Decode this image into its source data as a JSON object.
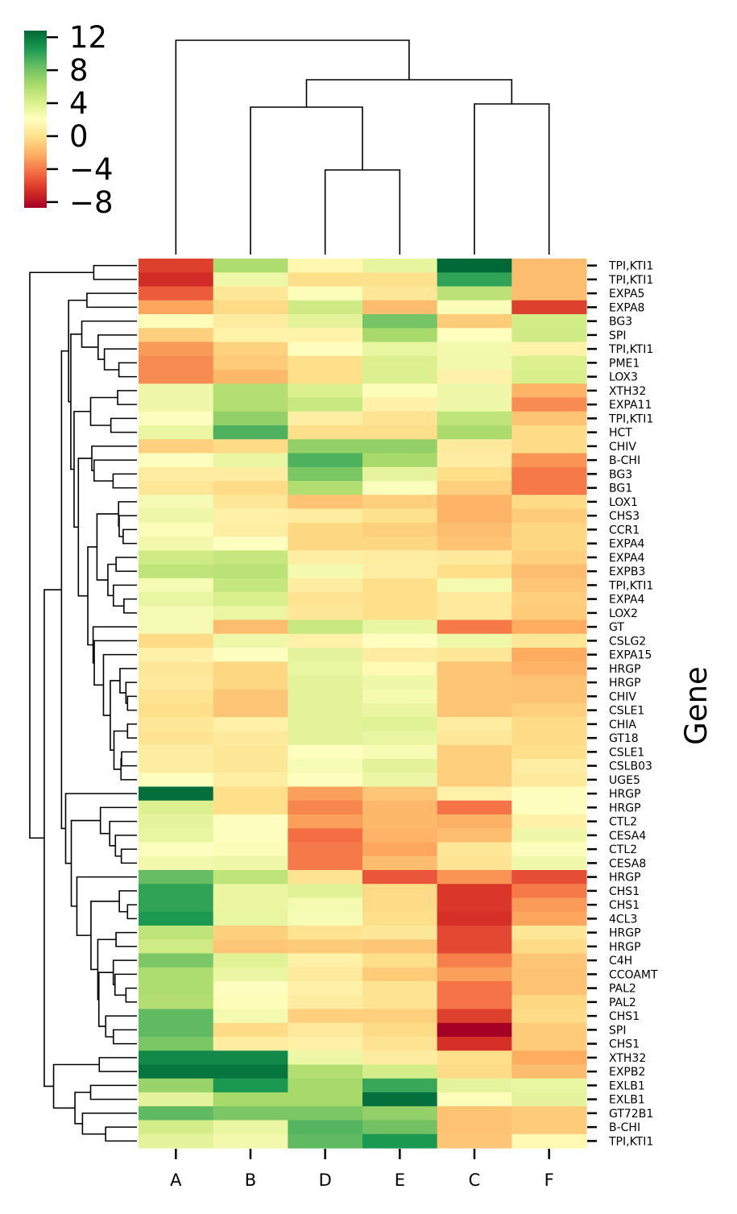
{
  "chart_data": {
    "type": "heatmap",
    "ylabel": "Gene",
    "colormap": "RdYlGn",
    "colorbar": {
      "range": [
        -8.7,
        12.8
      ],
      "ticks": [
        12,
        8,
        4,
        0,
        -4,
        -8
      ],
      "tick_labels": [
        "12",
        "8",
        "4",
        "0",
        "−4",
        "−8"
      ],
      "placement": "top-left"
    },
    "dendrogram": {
      "rows": true,
      "columns": true
    },
    "columns": [
      "A",
      "B",
      "D",
      "E",
      "C",
      "F"
    ],
    "rows": [
      "TPI,KTI1",
      "TPI,KTI1",
      "EXPA5",
      "EXPA8",
      "BG3",
      "SPI",
      "TPI,KTI1",
      "PME1",
      "LOX3",
      "XTH32",
      "EXPA11",
      "TPI,KTI1",
      "HCT",
      "CHIV",
      "B-CHI",
      "BG3",
      "BG1",
      "LOX1",
      "CHS3",
      "CCR1",
      "EXPA4",
      "EXPA4",
      "EXPB3",
      "TPI,KTI1",
      "EXPA4",
      "LOX2",
      "GT",
      "CSLG2",
      "EXPA15",
      "HRGP",
      "HRGP",
      "CHIV",
      "CSLE1",
      "CHIA",
      "GT18",
      "CSLE1",
      "CSLB03",
      "UGE5",
      "HRGP",
      "HRGP",
      "CTL2",
      "CESA4",
      "CTL2",
      "CESA8",
      "HRGP",
      "CHS1",
      "CHS1",
      "4CL3",
      "HRGP",
      "HRGP",
      "C4H",
      "CCOAMT",
      "PAL2",
      "PAL2",
      "CHS1",
      "SPI",
      "CHS1",
      "XTH32",
      "EXPB2",
      "EXLB1",
      "EXLB1",
      "GT72B1",
      "B-CHI",
      "TPI,KTI1"
    ],
    "values": [
      [
        -6.0,
        6.0,
        1.5,
        3.4,
        12.8,
        -1.6
      ],
      [
        -6.8,
        3.0,
        -0.1,
        0.0,
        10.0,
        -1.6
      ],
      [
        -5.0,
        0.4,
        2.3,
        0.4,
        5.5,
        -1.6
      ],
      [
        -2.5,
        -0.3,
        4.6,
        -1.6,
        2.3,
        -6.0
      ],
      [
        1.8,
        0.8,
        3.6,
        8.0,
        -1.0,
        4.5
      ],
      [
        -0.8,
        1.2,
        1.2,
        6.3,
        2.1,
        4.6
      ],
      [
        -2.9,
        -0.7,
        2.0,
        3.3,
        2.8,
        1.2
      ],
      [
        -3.4,
        -1.0,
        -0.1,
        4.0,
        2.8,
        4.0
      ],
      [
        -3.4,
        -1.8,
        -0.1,
        4.0,
        1.1,
        4.2
      ],
      [
        3.0,
        5.8,
        4.0,
        2.3,
        3.0,
        -2.0
      ],
      [
        3.0,
        5.8,
        4.9,
        1.1,
        3.0,
        -3.4
      ],
      [
        2.1,
        7.0,
        0.9,
        0.2,
        5.3,
        -1.3
      ],
      [
        3.2,
        9.2,
        -0.1,
        -0.1,
        6.2,
        -0.3
      ],
      [
        -0.8,
        -0.3,
        7.0,
        7.0,
        0.6,
        -0.3
      ],
      [
        2.1,
        3.2,
        9.2,
        6.3,
        0.8,
        -3.1
      ],
      [
        0.8,
        0.8,
        7.8,
        3.5,
        -0.1,
        -4.0
      ],
      [
        0.4,
        -0.3,
        5.9,
        2.2,
        -0.8,
        -4.0
      ],
      [
        2.6,
        0.4,
        -1.4,
        -0.8,
        -2.0,
        -0.3
      ],
      [
        3.0,
        1.1,
        0.8,
        0.0,
        -2.0,
        -1.0
      ],
      [
        2.3,
        0.9,
        -0.5,
        -0.8,
        -1.6,
        -0.5
      ],
      [
        2.8,
        2.1,
        -0.5,
        -0.5,
        -1.4,
        -0.5
      ],
      [
        4.6,
        5.0,
        0.9,
        0.8,
        0.6,
        -0.8
      ],
      [
        5.3,
        5.5,
        2.7,
        0.9,
        -0.1,
        -1.6
      ],
      [
        2.6,
        5.0,
        0.8,
        -0.1,
        2.7,
        -1.2
      ],
      [
        3.3,
        4.2,
        0.2,
        -0.1,
        0.6,
        -0.8
      ],
      [
        2.6,
        3.2,
        0.4,
        -0.1,
        0.6,
        -1.0
      ],
      [
        2.6,
        -1.6,
        4.9,
        3.3,
        -4.0,
        -2.3
      ],
      [
        -0.3,
        3.0,
        1.1,
        2.0,
        3.0,
        0.4
      ],
      [
        1.1,
        2.1,
        3.5,
        0.8,
        0.4,
        -2.3
      ],
      [
        0.4,
        -0.5,
        3.3,
        1.6,
        -1.2,
        -2.0
      ],
      [
        0.6,
        -0.5,
        3.6,
        3.0,
        -1.2,
        -1.4
      ],
      [
        0.2,
        -1.2,
        3.6,
        2.7,
        -1.2,
        -1.4
      ],
      [
        -0.1,
        -1.2,
        3.6,
        3.2,
        -1.2,
        -0.8
      ],
      [
        0.4,
        1.1,
        3.6,
        3.8,
        0.8,
        -0.3
      ],
      [
        0.2,
        0.6,
        3.6,
        3.3,
        0.4,
        -0.3
      ],
      [
        0.8,
        0.4,
        2.1,
        2.5,
        -0.8,
        -0.1
      ],
      [
        0.8,
        0.4,
        2.5,
        3.6,
        -0.8,
        0.9
      ],
      [
        2.1,
        0.9,
        2.1,
        3.1,
        -0.8,
        0.6
      ],
      [
        12.5,
        -0.1,
        -2.7,
        -1.2,
        1.1,
        2.1
      ],
      [
        4.0,
        -0.1,
        -3.6,
        -1.8,
        -4.2,
        2.1
      ],
      [
        3.5,
        2.1,
        -2.7,
        -1.8,
        -2.1,
        1.1
      ],
      [
        3.3,
        2.1,
        -4.4,
        -2.0,
        -1.6,
        3.0
      ],
      [
        2.1,
        2.3,
        -4.0,
        -2.5,
        0.4,
        2.2
      ],
      [
        2.8,
        3.0,
        -4.0,
        -1.6,
        0.2,
        3.0
      ],
      [
        8.5,
        5.3,
        0.2,
        -5.2,
        -3.1,
        -5.5
      ],
      [
        10.0,
        3.2,
        3.8,
        -0.3,
        -6.3,
        -4.0
      ],
      [
        10.0,
        3.2,
        2.7,
        -0.3,
        -6.3,
        -2.9
      ],
      [
        10.6,
        3.3,
        2.5,
        -0.1,
        -6.6,
        -2.5
      ],
      [
        5.3,
        -0.8,
        0.2,
        0.4,
        -5.7,
        0.4
      ],
      [
        4.6,
        -1.2,
        -1.0,
        -1.2,
        -5.7,
        -0.3
      ],
      [
        7.8,
        3.8,
        1.1,
        -0.1,
        -3.8,
        -1.2
      ],
      [
        6.0,
        3.2,
        0.6,
        -1.0,
        -2.7,
        -1.4
      ],
      [
        6.0,
        2.1,
        1.1,
        0.2,
        -4.2,
        -1.4
      ],
      [
        5.8,
        1.8,
        0.8,
        0.2,
        -4.2,
        -0.5
      ],
      [
        8.7,
        2.7,
        -0.8,
        -0.8,
        -6.0,
        -0.3
      ],
      [
        8.7,
        -0.3,
        0.6,
        -0.3,
        -8.7,
        -1.0
      ],
      [
        7.8,
        0.8,
        1.1,
        0.2,
        -6.6,
        -1.0
      ],
      [
        11.3,
        11.3,
        3.1,
        0.8,
        -0.1,
        -2.3
      ],
      [
        12.2,
        12.2,
        5.8,
        4.4,
        -0.3,
        -1.6
      ],
      [
        6.8,
        10.6,
        6.3,
        9.8,
        3.5,
        3.3
      ],
      [
        3.5,
        6.3,
        6.3,
        12.4,
        2.3,
        3.5
      ],
      [
        8.7,
        7.8,
        7.8,
        7.0,
        -1.4,
        -1.0
      ],
      [
        4.4,
        3.2,
        9.0,
        8.1,
        -1.4,
        -1.0
      ],
      [
        3.5,
        2.8,
        8.7,
        10.6,
        -1.2,
        1.6
      ]
    ]
  }
}
